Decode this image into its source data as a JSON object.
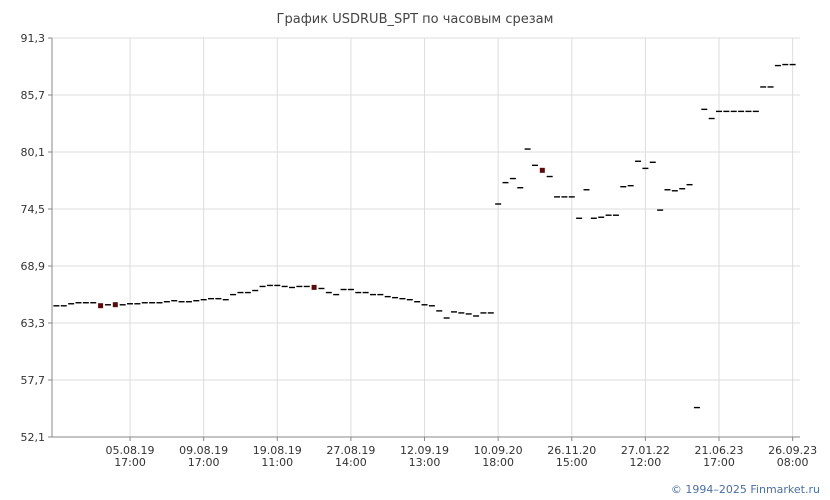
{
  "chart_data": {
    "type": "scatter",
    "title": "График USDRUB_SPT по часовым срезам",
    "xlabel": "",
    "ylabel": "",
    "ylim": [
      52.1,
      91.3
    ],
    "y_ticks": [
      "91,3",
      "85,7",
      "80,1",
      "74,5",
      "68,9",
      "63,3",
      "57,7",
      "52,1"
    ],
    "x_ticks": [
      {
        "line1": "05.08.19",
        "line2": "17:00",
        "index": 5
      },
      {
        "line1": "09.08.19",
        "line2": "17:00",
        "index": 10
      },
      {
        "line1": "19.08.19",
        "line2": "11:00",
        "index": 15
      },
      {
        "line1": "27.08.19",
        "line2": "14:00",
        "index": 20
      },
      {
        "line1": "12.09.19",
        "line2": "13:00",
        "index": 25
      },
      {
        "line1": "10.09.20",
        "line2": "18:00",
        "index": 30
      },
      {
        "line1": "26.11.20",
        "line2": "15:00",
        "index": 35
      },
      {
        "line1": "27.01.22",
        "line2": "12:00",
        "index": 40
      },
      {
        "line1": "21.06.23",
        "line2": "17:00",
        "index": 45
      },
      {
        "line1": "26.09.23",
        "line2": "08:00",
        "index": 50
      }
    ],
    "grid": true,
    "colors": {
      "marker": "#000000",
      "marker_alt": "#5a0a0a",
      "grid": "#dddddd",
      "axis": "#888888"
    },
    "points": [
      {
        "i": 0.0,
        "v": 65.0
      },
      {
        "i": 0.5,
        "v": 65.0
      },
      {
        "i": 1.0,
        "v": 65.2
      },
      {
        "i": 1.5,
        "v": 65.3
      },
      {
        "i": 2.0,
        "v": 65.3
      },
      {
        "i": 2.5,
        "v": 65.3
      },
      {
        "i": 3.0,
        "v": 65.0,
        "alt": true
      },
      {
        "i": 3.5,
        "v": 65.1
      },
      {
        "i": 4.0,
        "v": 65.1,
        "alt": true
      },
      {
        "i": 4.5,
        "v": 65.1
      },
      {
        "i": 5.0,
        "v": 65.2
      },
      {
        "i": 5.5,
        "v": 65.2
      },
      {
        "i": 6.0,
        "v": 65.3
      },
      {
        "i": 6.5,
        "v": 65.3
      },
      {
        "i": 7.0,
        "v": 65.3
      },
      {
        "i": 7.5,
        "v": 65.4
      },
      {
        "i": 8.0,
        "v": 65.5
      },
      {
        "i": 8.5,
        "v": 65.4
      },
      {
        "i": 9.0,
        "v": 65.4
      },
      {
        "i": 9.5,
        "v": 65.5
      },
      {
        "i": 10.0,
        "v": 65.6
      },
      {
        "i": 10.5,
        "v": 65.7
      },
      {
        "i": 11.0,
        "v": 65.7
      },
      {
        "i": 11.5,
        "v": 65.6
      },
      {
        "i": 12.0,
        "v": 66.1
      },
      {
        "i": 12.5,
        "v": 66.3
      },
      {
        "i": 13.0,
        "v": 66.3
      },
      {
        "i": 13.5,
        "v": 66.5
      },
      {
        "i": 14.0,
        "v": 66.9
      },
      {
        "i": 14.5,
        "v": 67.0
      },
      {
        "i": 15.0,
        "v": 67.0
      },
      {
        "i": 15.5,
        "v": 66.9
      },
      {
        "i": 16.0,
        "v": 66.8
      },
      {
        "i": 16.5,
        "v": 66.9
      },
      {
        "i": 17.0,
        "v": 66.9
      },
      {
        "i": 17.5,
        "v": 66.8,
        "alt": true
      },
      {
        "i": 18.0,
        "v": 66.7
      },
      {
        "i": 18.5,
        "v": 66.3
      },
      {
        "i": 19.0,
        "v": 66.1
      },
      {
        "i": 19.5,
        "v": 66.6
      },
      {
        "i": 20.0,
        "v": 66.6
      },
      {
        "i": 20.5,
        "v": 66.3
      },
      {
        "i": 21.0,
        "v": 66.3
      },
      {
        "i": 21.5,
        "v": 66.1
      },
      {
        "i": 22.0,
        "v": 66.1
      },
      {
        "i": 22.5,
        "v": 65.9
      },
      {
        "i": 23.0,
        "v": 65.8
      },
      {
        "i": 23.5,
        "v": 65.7
      },
      {
        "i": 24.0,
        "v": 65.6
      },
      {
        "i": 24.5,
        "v": 65.4
      },
      {
        "i": 25.0,
        "v": 65.1
      },
      {
        "i": 25.5,
        "v": 65.0
      },
      {
        "i": 26.0,
        "v": 64.5
      },
      {
        "i": 26.5,
        "v": 63.8
      },
      {
        "i": 27.0,
        "v": 64.4
      },
      {
        "i": 27.5,
        "v": 64.3
      },
      {
        "i": 28.0,
        "v": 64.2
      },
      {
        "i": 28.5,
        "v": 64.0
      },
      {
        "i": 29.0,
        "v": 64.3
      },
      {
        "i": 29.5,
        "v": 64.3
      },
      {
        "i": 30.0,
        "v": 75.0
      },
      {
        "i": 30.5,
        "v": 77.1
      },
      {
        "i": 31.0,
        "v": 77.5
      },
      {
        "i": 31.5,
        "v": 76.6
      },
      {
        "i": 32.0,
        "v": 80.4
      },
      {
        "i": 32.5,
        "v": 78.8
      },
      {
        "i": 33.0,
        "v": 78.3,
        "alt": true
      },
      {
        "i": 33.5,
        "v": 77.7
      },
      {
        "i": 34.0,
        "v": 75.7
      },
      {
        "i": 34.5,
        "v": 75.7
      },
      {
        "i": 35.0,
        "v": 75.7
      },
      {
        "i": 35.5,
        "v": 73.6
      },
      {
        "i": 36.0,
        "v": 76.4
      },
      {
        "i": 36.5,
        "v": 73.6
      },
      {
        "i": 37.0,
        "v": 73.7
      },
      {
        "i": 37.5,
        "v": 73.9
      },
      {
        "i": 38.0,
        "v": 73.9
      },
      {
        "i": 38.5,
        "v": 76.7
      },
      {
        "i": 39.0,
        "v": 76.8
      },
      {
        "i": 39.5,
        "v": 79.2
      },
      {
        "i": 40.0,
        "v": 78.5
      },
      {
        "i": 40.5,
        "v": 79.1
      },
      {
        "i": 41.0,
        "v": 74.4
      },
      {
        "i": 41.5,
        "v": 76.4
      },
      {
        "i": 42.0,
        "v": 76.3
      },
      {
        "i": 42.5,
        "v": 76.5
      },
      {
        "i": 43.0,
        "v": 76.9
      },
      {
        "i": 43.5,
        "v": 55.0
      },
      {
        "i": 44.0,
        "v": 84.3
      },
      {
        "i": 44.5,
        "v": 83.4
      },
      {
        "i": 45.0,
        "v": 84.1
      },
      {
        "i": 45.5,
        "v": 84.1
      },
      {
        "i": 46.0,
        "v": 84.1
      },
      {
        "i": 46.5,
        "v": 84.1
      },
      {
        "i": 47.0,
        "v": 84.1
      },
      {
        "i": 47.5,
        "v": 84.1
      },
      {
        "i": 48.0,
        "v": 86.5
      },
      {
        "i": 48.5,
        "v": 86.5
      },
      {
        "i": 49.0,
        "v": 88.6
      },
      {
        "i": 49.5,
        "v": 88.7
      },
      {
        "i": 50.0,
        "v": 88.7
      }
    ]
  },
  "footer": {
    "copyright": "© 1994–2025 Finmarket.ru"
  }
}
